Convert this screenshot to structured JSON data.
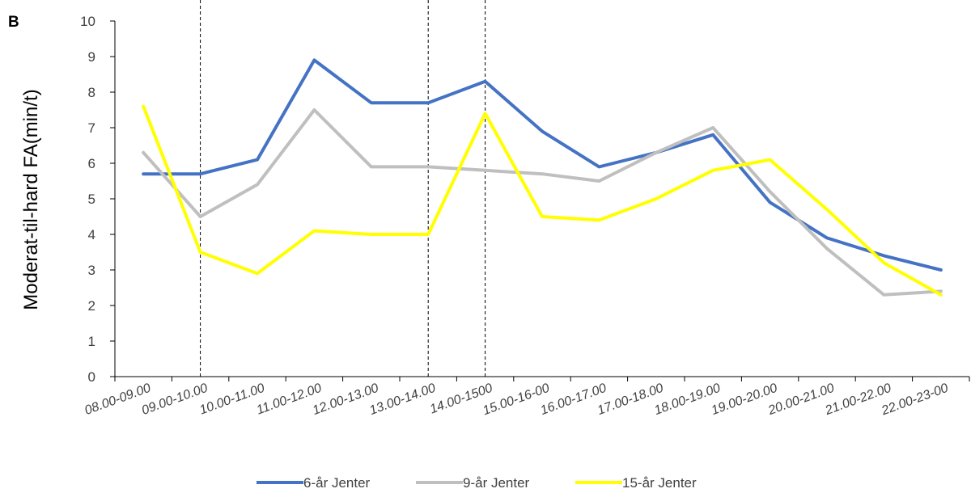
{
  "chart_data": {
    "type": "line",
    "panel_label": "B",
    "ylabel": "Moderat-til-hard FA(min/t)",
    "xlabel": "",
    "ylim": [
      0,
      10
    ],
    "yticks": [
      "0",
      "1",
      "2",
      "3",
      "4",
      "5",
      "6",
      "7",
      "8",
      "9",
      "10"
    ],
    "categories": [
      "08.00-09.00",
      "09.00-10.00",
      "10.00-11.00",
      "11.00-12.00",
      "12.00-13.00",
      "13.00-14.00",
      "14.00-1500",
      "15.00-16-00",
      "16.00-17.00",
      "17.00-18.00",
      "18.00-19.00",
      "19.00-20.00",
      "20.00-21.00",
      "21.00-22.00",
      "22.00-23-00"
    ],
    "vertical_dashed_lines_at": [
      "09.00-10.00",
      "13.00-14.00",
      "14.00-1500"
    ],
    "grid": false,
    "legend_position": "bottom",
    "series": [
      {
        "name": "6-år Jenter",
        "color": "#4472C4",
        "values": [
          5.7,
          5.7,
          6.1,
          8.9,
          7.7,
          7.7,
          8.3,
          6.9,
          5.9,
          6.3,
          6.8,
          4.9,
          3.9,
          3.4,
          3.0
        ]
      },
      {
        "name": "9-år Jenter",
        "color": "#BFBFBF",
        "values": [
          6.3,
          4.5,
          5.4,
          7.5,
          5.9,
          5.9,
          5.8,
          5.7,
          5.5,
          6.3,
          7.0,
          5.2,
          3.6,
          2.3,
          2.4
        ]
      },
      {
        "name": "15-år Jenter",
        "color": "#FFFF00",
        "values": [
          7.6,
          3.5,
          2.9,
          4.1,
          4.0,
          4.0,
          7.4,
          4.5,
          4.4,
          5.0,
          5.8,
          6.1,
          4.7,
          3.2,
          2.3
        ]
      }
    ]
  }
}
